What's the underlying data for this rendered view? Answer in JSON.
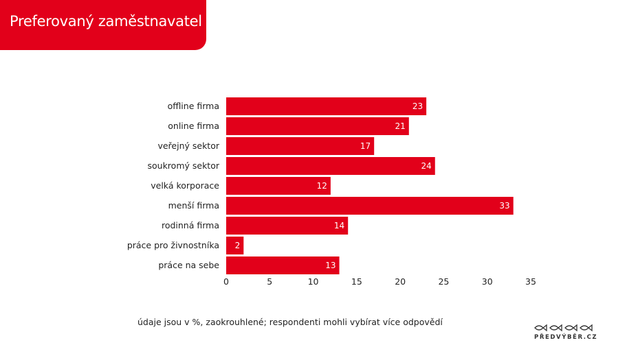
{
  "header": {
    "title": "Preferovaný zaměstnavatel"
  },
  "chart_data": {
    "type": "bar",
    "orientation": "horizontal",
    "categories": [
      "offline firma",
      "online firma",
      "veřejný sektor",
      "soukromý sektor",
      "velká korporace",
      "menší firma",
      "rodinná firma",
      "práce pro živnostníka",
      "práce na sebe"
    ],
    "values": [
      23,
      21,
      17,
      24,
      12,
      33,
      14,
      2,
      13
    ],
    "value_labels": [
      "23",
      "21",
      "17",
      "24",
      "12",
      "33",
      "14",
      "2",
      "13"
    ],
    "xlim": [
      0,
      35
    ],
    "xticks": [
      "0",
      "5",
      "10",
      "15",
      "20",
      "25",
      "30",
      "35"
    ],
    "grid": false,
    "bar_color": "#e2001a"
  },
  "footer": {
    "note": "údaje jsou v %, zaokrouhlené; respondenti mohli vybírat více odpovědí",
    "logo_text": "PŘEDVÝBĚR.CZ"
  }
}
